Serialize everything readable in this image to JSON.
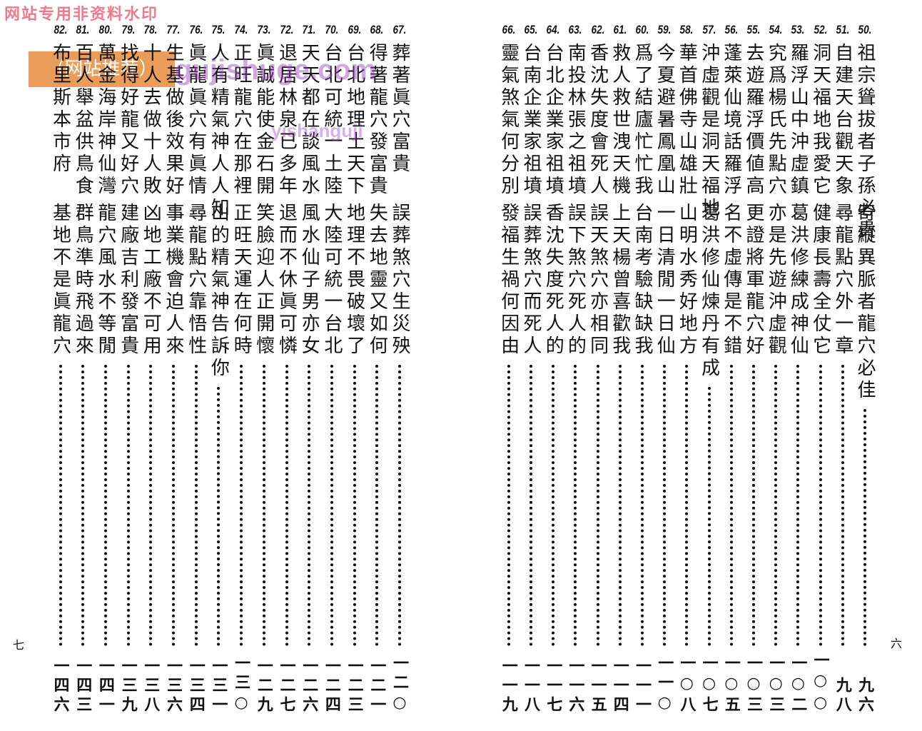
{
  "watermark": {
    "site_notice": "网站专用非资料水印",
    "badge": "（网站推荐）",
    "url": "gujishuge.com",
    "stamp": "yishanguji"
  },
  "left_page": {
    "page_number": "七",
    "entries": [
      {
        "number": "67.",
        "title": "葬著眞穴富貴",
        "subtitle": "誤葬煞穴生災殃",
        "page": "一二○"
      },
      {
        "number": "68.",
        "title": "得著龍穴發富貴",
        "subtitle": "失去地靈又如何",
        "page": "一二一"
      },
      {
        "number": "69.",
        "title": "台北地理土天下",
        "subtitle": "地理不畏破壞了",
        "page": "一二三"
      },
      {
        "number": "70.",
        "title": "台北可統一土陸",
        "subtitle": "大陸可統一台北",
        "page": "一二四"
      },
      {
        "number": "71.",
        "title": "天天都在談風水",
        "subtitle": "風水仙子男亦女",
        "page": "一二六"
      },
      {
        "number": "72.",
        "title": "退居林泉已多年",
        "subtitle": "退而不休眞可憐",
        "page": "一二七"
      },
      {
        "number": "73.",
        "title": "眞誠能使金石開",
        "subtitle": "笑臉迎人正開懷",
        "page": "一二九"
      },
      {
        "number": "74.",
        "title": "正旺龍穴在那裡",
        "subtitle": "正旺天運在何時",
        "page": "一三○"
      },
      {
        "number": "75.",
        "title": "人有精氣神人人知",
        "subtitle": "山的精氣神告訴你",
        "page": "一三一"
      },
      {
        "number": "76.",
        "title": "眞龍眞穴有眞情",
        "subtitle": "尋龍點穴靠悟性",
        "page": "一三四"
      },
      {
        "number": "77.",
        "title": "生基做後效果好",
        "subtitle": "事業機會迫人來",
        "page": "一三六"
      },
      {
        "number": "78.",
        "title": "十人去做十人敗",
        "subtitle": "凶地工廠不可用",
        "page": "一三八"
      },
      {
        "number": "79.",
        "title": "找得好龍又好穴",
        "subtitle": "建廠吉利發富貴",
        "page": "一三九"
      },
      {
        "number": "80.",
        "title": "萬金海岸神仙灣",
        "subtitle": "龍穴風水不等閒",
        "page": "一四一"
      },
      {
        "number": "81.",
        "title": "百人舉盆供鳥食",
        "subtitle": "群鳥準時飛過來",
        "page": "一四三"
      },
      {
        "number": "82.",
        "title": "布里斯本市府",
        "subtitle": "基地不是眞龍穴",
        "page": "一四六"
      }
    ]
  },
  "right_page": {
    "page_number": "六",
    "entries": [
      {
        "number": "50.",
        "title": "祖宗聳拔者子孫必貴",
        "subtitle": "奇縱異脈者龍穴必佳",
        "page": "九六"
      },
      {
        "number": "51.",
        "title": "自建天台觀天象",
        "subtitle": "尋龍點穴外一章",
        "page": "九八"
      },
      {
        "number": "52.",
        "title": "洞天福地我愛它",
        "subtitle": "健康長壽全仗它",
        "page": "一○○"
      },
      {
        "number": "53.",
        "title": "羅浮山中沖虛鎮",
        "subtitle": "葛洪修練成神仙",
        "page": "一○二"
      },
      {
        "number": "54.",
        "title": "究爲楊氏先點穴",
        "subtitle": "亦是先遊沖虛觀",
        "page": "一○三"
      },
      {
        "number": "55.",
        "title": "去遊羅浮價値高",
        "subtitle": "更證將軍龍穴好",
        "page": "一○三"
      },
      {
        "number": "56.",
        "title": "蓬萊仙境話羅浮",
        "subtitle": "名不虛傳是不錯",
        "page": "一○五"
      },
      {
        "number": "57.",
        "title": "沖虛觀是洞天福地",
        "subtitle": "葛洪修仙煉丹有成",
        "page": "一○七"
      },
      {
        "number": "58.",
        "title": "華首佛寺山雄壯",
        "subtitle": "山明水秀好地方",
        "page": "一○八"
      },
      {
        "number": "59.",
        "title": "今夏避暑鳳凰山",
        "subtitle": "一日清閒一日仙",
        "page": "一一○"
      },
      {
        "number": "60.",
        "title": "爲了結廬忙忙我",
        "subtitle": "台南考驗缺缺我",
        "page": "一一一"
      },
      {
        "number": "61.",
        "title": "救人救世洩天機",
        "subtitle": "上天楊曾喜歡我",
        "page": "一一四"
      },
      {
        "number": "62.",
        "title": "香沈失度會死人",
        "subtitle": "誤天煞穴亦相同",
        "page": "一一五"
      },
      {
        "number": "63.",
        "title": "南投林張之祖墳",
        "subtitle": "誤下煞穴死人的",
        "page": "一一六"
      },
      {
        "number": "64.",
        "title": "台北企業家祖墳",
        "subtitle": "香沈失度死人的",
        "page": "一一七"
      },
      {
        "number": "65.",
        "title": "台南企業家祖墳",
        "subtitle": "誤葬煞穴而死人",
        "page": "一一八"
      },
      {
        "number": "66.",
        "title": "靈氣煞氣何分別",
        "subtitle": "發福生禍何因由",
        "page": "一一九"
      }
    ]
  }
}
